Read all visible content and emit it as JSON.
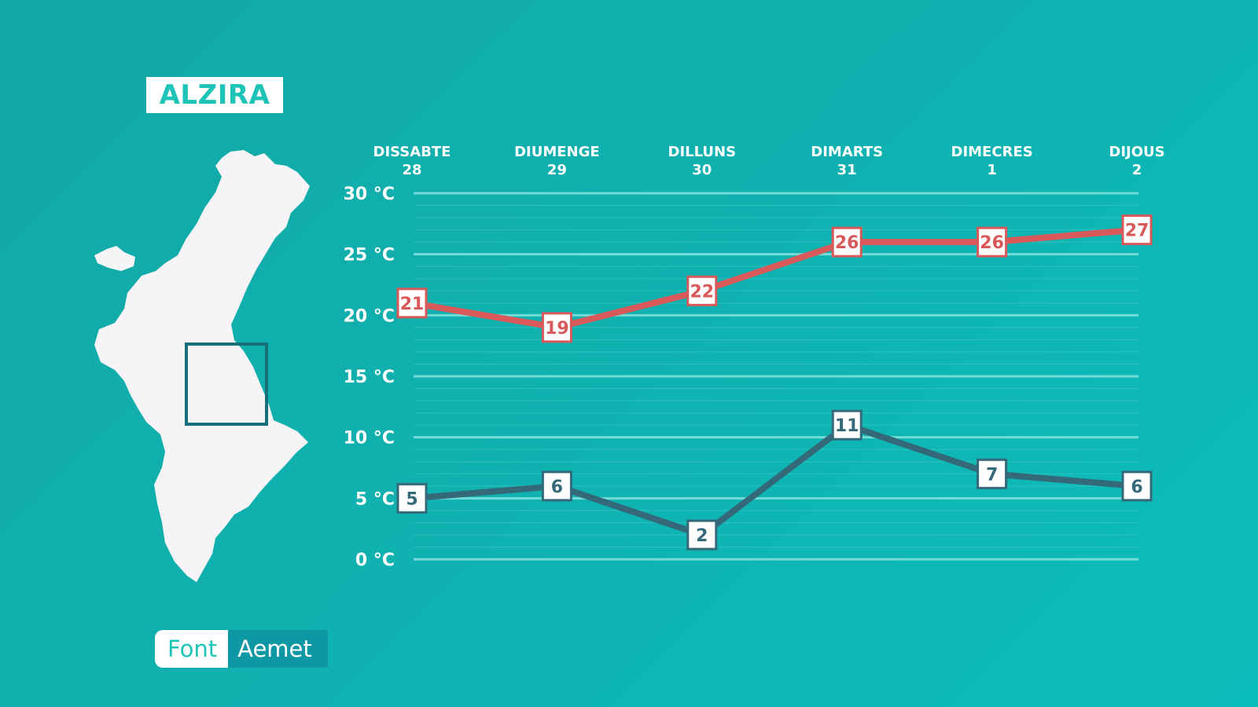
{
  "location": "ALZIRA",
  "source": {
    "label": "Font",
    "value": "Aemet"
  },
  "colors": {
    "max": "#d9595a",
    "min": "#34697a",
    "grid": "#7fe0dc",
    "background": "#0fb3b1"
  },
  "icons": {
    "map": "valencian-community-map-icon"
  },
  "chart_data": {
    "type": "line",
    "title": "",
    "xlabel": "",
    "ylabel": "",
    "categories": [
      {
        "day": "DISSABTE",
        "date": "28"
      },
      {
        "day": "DIUMENGE",
        "date": "29"
      },
      {
        "day": "DILLUNS",
        "date": "30"
      },
      {
        "day": "DIMARTS",
        "date": "31"
      },
      {
        "day": "DIMECRES",
        "date": "1"
      },
      {
        "day": "DIJOUS",
        "date": "2"
      }
    ],
    "yticks": [
      "0 °C",
      "5 °C",
      "10 °C",
      "15 °C",
      "20 °C",
      "25 °C",
      "30 °C"
    ],
    "ylim": [
      0,
      30
    ],
    "grid": true,
    "series": [
      {
        "key": "max",
        "values": [
          21,
          19,
          22,
          26,
          26,
          27
        ]
      },
      {
        "key": "min",
        "values": [
          5,
          6,
          2,
          11,
          7,
          6
        ]
      }
    ]
  }
}
